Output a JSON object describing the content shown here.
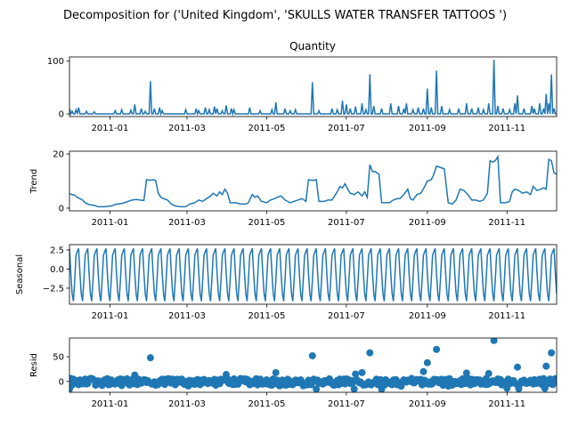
{
  "chart_data": {
    "type": "line",
    "suptitle": "Decomposition for ('United Kingdom', 'SKULLS  WATER TRANSFER TATTOOS ')",
    "x_range": [
      "2010-12-01",
      "2011-12-09"
    ],
    "x_ticks": [
      "2011-01",
      "2011-03",
      "2011-05",
      "2011-07",
      "2011-09",
      "2011-11"
    ],
    "series_color": "#1f77b4",
    "panels": [
      {
        "name": "quantity",
        "title": "Quantity",
        "ylabel": "",
        "kind": "line",
        "ylim": [
          -5,
          108
        ],
        "yticks": [
          "0",
          "100"
        ],
        "baseline": 0,
        "spikes": [
          [
            "2010-12-01",
            10
          ],
          [
            "2010-12-03",
            5
          ],
          [
            "2010-12-06",
            8
          ],
          [
            "2010-12-08",
            12
          ],
          [
            "2010-12-14",
            5
          ],
          [
            "2010-12-20",
            4
          ],
          [
            "2011-01-05",
            6
          ],
          [
            "2011-01-10",
            8
          ],
          [
            "2011-01-17",
            7
          ],
          [
            "2011-01-20",
            18
          ],
          [
            "2011-01-25",
            10
          ],
          [
            "2011-01-28",
            5
          ],
          [
            "2011-02-01",
            62
          ],
          [
            "2011-02-04",
            10
          ],
          [
            "2011-02-08",
            12
          ],
          [
            "2011-02-10",
            6
          ],
          [
            "2011-02-28",
            8
          ],
          [
            "2011-03-08",
            10
          ],
          [
            "2011-03-10",
            6
          ],
          [
            "2011-03-15",
            12
          ],
          [
            "2011-03-18",
            8
          ],
          [
            "2011-03-22",
            14
          ],
          [
            "2011-03-24",
            10
          ],
          [
            "2011-03-28",
            6
          ],
          [
            "2011-03-31",
            16
          ],
          [
            "2011-04-04",
            10
          ],
          [
            "2011-04-06",
            8
          ],
          [
            "2011-04-18",
            12
          ],
          [
            "2011-04-26",
            6
          ],
          [
            "2011-05-05",
            8
          ],
          [
            "2011-05-08",
            22
          ],
          [
            "2011-05-15",
            10
          ],
          [
            "2011-05-19",
            6
          ],
          [
            "2011-05-23",
            8
          ],
          [
            "2011-06-05",
            60
          ],
          [
            "2011-06-10",
            6
          ],
          [
            "2011-06-20",
            10
          ],
          [
            "2011-06-24",
            8
          ],
          [
            "2011-06-28",
            25
          ],
          [
            "2011-07-01",
            18
          ],
          [
            "2011-07-04",
            10
          ],
          [
            "2011-07-08",
            14
          ],
          [
            "2011-07-13",
            20
          ],
          [
            "2011-07-16",
            8
          ],
          [
            "2011-07-19",
            75
          ],
          [
            "2011-07-22",
            15
          ],
          [
            "2011-07-28",
            10
          ],
          [
            "2011-08-04",
            20
          ],
          [
            "2011-08-10",
            15
          ],
          [
            "2011-08-14",
            10
          ],
          [
            "2011-08-16",
            20
          ],
          [
            "2011-08-21",
            8
          ],
          [
            "2011-08-25",
            12
          ],
          [
            "2011-08-29",
            10
          ],
          [
            "2011-09-01",
            48
          ],
          [
            "2011-09-04",
            12
          ],
          [
            "2011-09-08",
            82
          ],
          [
            "2011-09-12",
            15
          ],
          [
            "2011-09-18",
            8
          ],
          [
            "2011-09-25",
            10
          ],
          [
            "2011-10-01",
            20
          ],
          [
            "2011-10-05",
            10
          ],
          [
            "2011-10-10",
            12
          ],
          [
            "2011-10-14",
            8
          ],
          [
            "2011-10-18",
            20
          ],
          [
            "2011-10-22",
            103
          ],
          [
            "2011-10-25",
            15
          ],
          [
            "2011-10-29",
            10
          ],
          [
            "2011-11-03",
            8
          ],
          [
            "2011-11-07",
            20
          ],
          [
            "2011-11-09",
            35
          ],
          [
            "2011-11-14",
            10
          ],
          [
            "2011-11-20",
            15
          ],
          [
            "2011-11-22",
            10
          ],
          [
            "2011-11-26",
            20
          ],
          [
            "2011-11-29",
            10
          ],
          [
            "2011-12-01",
            38
          ],
          [
            "2011-12-03",
            20
          ],
          [
            "2011-12-05",
            75
          ],
          [
            "2011-12-07",
            10
          ],
          [
            "2011-12-09",
            0
          ]
        ]
      },
      {
        "name": "trend",
        "title": "",
        "ylabel": "Trend",
        "kind": "line",
        "ylim": [
          -1,
          21
        ],
        "yticks": [
          "0",
          "20"
        ],
        "points": [
          [
            "2010-12-01",
            5.3
          ],
          [
            "2010-12-03",
            5.0
          ],
          [
            "2010-12-05",
            4.8
          ],
          [
            "2010-12-07",
            4.0
          ],
          [
            "2010-12-09",
            3.5
          ],
          [
            "2010-12-11",
            3.0
          ],
          [
            "2010-12-13",
            2.0
          ],
          [
            "2010-12-15",
            1.5
          ],
          [
            "2010-12-17",
            1.2
          ],
          [
            "2010-12-20",
            1.0
          ],
          [
            "2010-12-23",
            0.5
          ],
          [
            "2010-12-28",
            0.5
          ],
          [
            "2011-01-02",
            0.8
          ],
          [
            "2011-01-06",
            1.5
          ],
          [
            "2011-01-10",
            1.7
          ],
          [
            "2011-01-12",
            2.0
          ],
          [
            "2011-01-15",
            2.5
          ],
          [
            "2011-01-18",
            3.0
          ],
          [
            "2011-01-21",
            3.2
          ],
          [
            "2011-01-24",
            3.0
          ],
          [
            "2011-01-27",
            2.8
          ],
          [
            "2011-01-29",
            10.5
          ],
          [
            "2011-02-01",
            10.3
          ],
          [
            "2011-02-03",
            10.5
          ],
          [
            "2011-02-05",
            10.2
          ],
          [
            "2011-02-07",
            5.5
          ],
          [
            "2011-02-09",
            4.0
          ],
          [
            "2011-02-11",
            3.5
          ],
          [
            "2011-02-14",
            3.0
          ],
          [
            "2011-02-17",
            1.5
          ],
          [
            "2011-02-20",
            0.8
          ],
          [
            "2011-02-24",
            0.5
          ],
          [
            "2011-02-28",
            0.5
          ],
          [
            "2011-03-03",
            1.5
          ],
          [
            "2011-03-07",
            2.0
          ],
          [
            "2011-03-10",
            3.0
          ],
          [
            "2011-03-13",
            2.5
          ],
          [
            "2011-03-16",
            3.5
          ],
          [
            "2011-03-19",
            4.5
          ],
          [
            "2011-03-21",
            5.5
          ],
          [
            "2011-03-24",
            4.5
          ],
          [
            "2011-03-26",
            6.0
          ],
          [
            "2011-03-28",
            5.0
          ],
          [
            "2011-03-30",
            7.0
          ],
          [
            "2011-04-01",
            5.5
          ],
          [
            "2011-04-03",
            2.0
          ],
          [
            "2011-04-07",
            2.0
          ],
          [
            "2011-04-11",
            1.5
          ],
          [
            "2011-04-15",
            1.5
          ],
          [
            "2011-04-17",
            2.0
          ],
          [
            "2011-04-20",
            5.0
          ],
          [
            "2011-04-22",
            4.0
          ],
          [
            "2011-04-24",
            4.5
          ],
          [
            "2011-04-27",
            2.5
          ],
          [
            "2011-05-01",
            2.0
          ],
          [
            "2011-05-04",
            3.0
          ],
          [
            "2011-05-07",
            3.5
          ],
          [
            "2011-05-09",
            4.0
          ],
          [
            "2011-05-12",
            4.5
          ],
          [
            "2011-05-15",
            3.0
          ],
          [
            "2011-05-19",
            2.0
          ],
          [
            "2011-05-22",
            2.5
          ],
          [
            "2011-05-25",
            3.0
          ],
          [
            "2011-05-28",
            3.5
          ],
          [
            "2011-05-31",
            2.5
          ],
          [
            "2011-06-02",
            10.5
          ],
          [
            "2011-06-05",
            10.2
          ],
          [
            "2011-06-08",
            10.5
          ],
          [
            "2011-06-10",
            2.5
          ],
          [
            "2011-06-14",
            2.5
          ],
          [
            "2011-06-17",
            3.0
          ],
          [
            "2011-06-20",
            3.0
          ],
          [
            "2011-06-22",
            4.5
          ],
          [
            "2011-06-24",
            6.0
          ],
          [
            "2011-06-26",
            8.0
          ],
          [
            "2011-06-28",
            7.5
          ],
          [
            "2011-06-30",
            9.0
          ],
          [
            "2011-07-02",
            7.0
          ],
          [
            "2011-07-04",
            5.5
          ],
          [
            "2011-07-07",
            5.0
          ],
          [
            "2011-07-10",
            6.0
          ],
          [
            "2011-07-13",
            4.5
          ],
          [
            "2011-07-15",
            6.0
          ],
          [
            "2011-07-17",
            4.0
          ],
          [
            "2011-07-19",
            16.0
          ],
          [
            "2011-07-21",
            13.5
          ],
          [
            "2011-07-23",
            13.5
          ],
          [
            "2011-07-26",
            12.5
          ],
          [
            "2011-07-28",
            2.0
          ],
          [
            "2011-08-03",
            2.0
          ],
          [
            "2011-08-06",
            3.0
          ],
          [
            "2011-08-09",
            3.5
          ],
          [
            "2011-08-11",
            3.5
          ],
          [
            "2011-08-14",
            5.0
          ],
          [
            "2011-08-17",
            7.0
          ],
          [
            "2011-08-19",
            3.5
          ],
          [
            "2011-08-21",
            3.0
          ],
          [
            "2011-08-24",
            5.0
          ],
          [
            "2011-08-27",
            5.5
          ],
          [
            "2011-08-30",
            8.0
          ],
          [
            "2011-09-01",
            10.0
          ],
          [
            "2011-09-04",
            10.5
          ],
          [
            "2011-09-06",
            12.5
          ],
          [
            "2011-09-08",
            15.5
          ],
          [
            "2011-09-11",
            15.0
          ],
          [
            "2011-09-14",
            14.5
          ],
          [
            "2011-09-17",
            2.0
          ],
          [
            "2011-09-20",
            1.5
          ],
          [
            "2011-09-23",
            3.0
          ],
          [
            "2011-09-26",
            7.0
          ],
          [
            "2011-09-29",
            6.5
          ],
          [
            "2011-10-02",
            5.0
          ],
          [
            "2011-10-05",
            3.0
          ],
          [
            "2011-10-08",
            3.0
          ],
          [
            "2011-10-11",
            2.5
          ],
          [
            "2011-10-14",
            3.0
          ],
          [
            "2011-10-17",
            5.5
          ],
          [
            "2011-10-19",
            17.5
          ],
          [
            "2011-10-21",
            17.0
          ],
          [
            "2011-10-23",
            17.5
          ],
          [
            "2011-10-25",
            19.0
          ],
          [
            "2011-10-27",
            2.0
          ],
          [
            "2011-10-31",
            2.0
          ],
          [
            "2011-11-03",
            2.5
          ],
          [
            "2011-11-05",
            6.0
          ],
          [
            "2011-11-07",
            7.0
          ],
          [
            "2011-11-10",
            6.5
          ],
          [
            "2011-11-13",
            5.5
          ],
          [
            "2011-11-16",
            6.0
          ],
          [
            "2011-11-19",
            5.0
          ],
          [
            "2011-11-21",
            8.0
          ],
          [
            "2011-11-24",
            6.5
          ],
          [
            "2011-11-27",
            7.0
          ],
          [
            "2011-11-29",
            7.5
          ],
          [
            "2011-12-01",
            7.0
          ],
          [
            "2011-12-03",
            18.0
          ],
          [
            "2011-12-05",
            17.5
          ],
          [
            "2011-12-07",
            13.0
          ],
          [
            "2011-12-09",
            12.5
          ]
        ]
      },
      {
        "name": "seasonal",
        "title": "",
        "ylabel": "Seasonal",
        "kind": "line",
        "ylim": [
          -4.6,
          3.2
        ],
        "yticks": [
          "2.5",
          "0.0",
          "−2.5"
        ],
        "cycle_values": [
          2.7,
          -0.5,
          -3.2,
          -4.2,
          -1.5,
          1.8,
          2.3
        ],
        "cycle_days": 7
      },
      {
        "name": "resid",
        "title": "",
        "ylabel": "Resid",
        "kind": "scatter",
        "ylim": [
          -22,
          88
        ],
        "yticks": [
          "0",
          "50"
        ],
        "outliers": [
          [
            "2011-02-01",
            48
          ],
          [
            "2011-06-05",
            52
          ],
          [
            "2011-07-19",
            58
          ],
          [
            "2011-09-01",
            38
          ],
          [
            "2011-09-08",
            65
          ],
          [
            "2011-10-22",
            83
          ],
          [
            "2011-11-09",
            29
          ],
          [
            "2011-12-01",
            31
          ],
          [
            "2011-12-05",
            58
          ],
          [
            "2011-08-29",
            20
          ],
          [
            "2011-07-13",
            18
          ],
          [
            "2011-05-08",
            18
          ],
          [
            "2011-10-01",
            17
          ],
          [
            "2011-10-18",
            16
          ],
          [
            "2011-07-08",
            15
          ],
          [
            "2011-03-31",
            14
          ],
          [
            "2011-01-20",
            13
          ]
        ]
      }
    ]
  }
}
